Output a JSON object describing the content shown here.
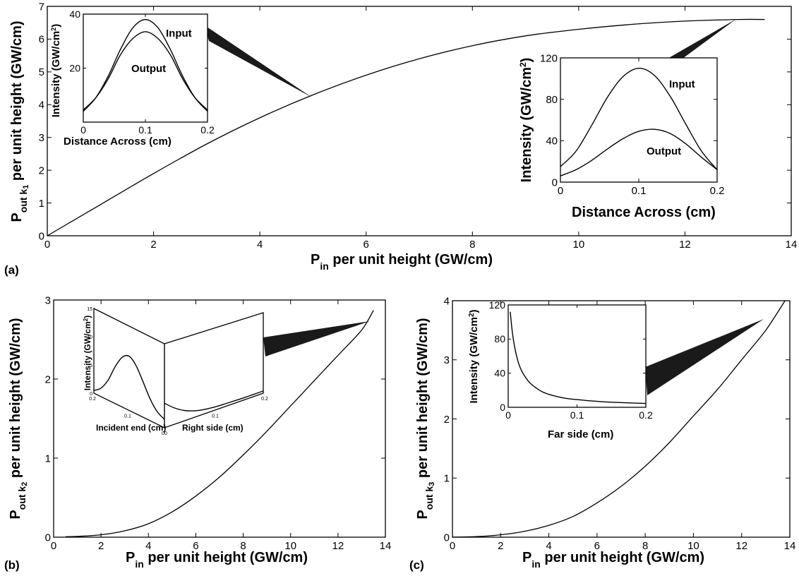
{
  "panels": {
    "a": {
      "tag": "(a)",
      "xlabel_main": "P",
      "xlabel_sub": "in",
      "xlabel_rest": " per unit height (GW/cm)",
      "ylabel_main": "P",
      "ylabel_sub1": "out k",
      "ylabel_sub2": "1",
      "ylabel_rest": " per unit height (GW/cm)",
      "inset_left": {
        "xlabel": "Distance Across (cm)",
        "ylabel_main": "Intensity (GW/cm",
        "ylabel_sup": "2",
        "ylabel_end": ")",
        "annotations": [
          "Input",
          "Output"
        ]
      },
      "inset_right": {
        "xlabel": "Distance Across (cm)",
        "ylabel_main": "Intensity (GW/cm",
        "ylabel_sup": "2",
        "ylabel_end": ")",
        "annotations": [
          "Input",
          "Output"
        ]
      }
    },
    "b": {
      "tag": "(b)",
      "xlabel_main": "P",
      "xlabel_sub": "in",
      "xlabel_rest": " per unit height (GW/cm)",
      "ylabel_main": "P",
      "ylabel_sub1": "out k",
      "ylabel_sub2": "2",
      "ylabel_rest": " per unit height (GW/cm)",
      "inset": {
        "zlabel_main": "Intensity (GW/cm",
        "zlabel_sup": "2",
        "zlabel_end": ")",
        "left_label": "Incident end (cm)",
        "right_label": "Right side (cm)",
        "z_ticks": [
          "0",
          "5",
          "10",
          "15"
        ],
        "left_ticks": [
          "0.2",
          "0.1",
          "0"
        ],
        "right_ticks": [
          "0",
          "0.1",
          "0.2"
        ]
      }
    },
    "c": {
      "tag": "(c)",
      "xlabel_main": "P",
      "xlabel_sub": "in",
      "xlabel_rest": " per unit height (GW/cm)",
      "ylabel_main": "P",
      "ylabel_sub1": "out k",
      "ylabel_sub2": "3",
      "ylabel_rest": " per unit height (GW/cm)",
      "inset": {
        "xlabel": "Far side (cm)",
        "ylabel_main": "Intensity (GW/cm",
        "ylabel_sup": "2",
        "ylabel_end": ")"
      }
    }
  },
  "chart_data": [
    {
      "id": "a-main",
      "type": "line",
      "xlim": [
        0,
        14
      ],
      "ylim": [
        0,
        7
      ],
      "xticks": [
        0,
        2,
        4,
        6,
        8,
        10,
        12,
        14
      ],
      "yticks": [
        0,
        1,
        2,
        3,
        4,
        5,
        6,
        7
      ],
      "grid": false,
      "series": [
        {
          "x": [
            0,
            1,
            2,
            3,
            4,
            5,
            6,
            7,
            8,
            9,
            10,
            11,
            12,
            13,
            13.5
          ],
          "y": [
            0,
            0.95,
            1.9,
            2.8,
            3.6,
            4.3,
            4.9,
            5.4,
            5.8,
            6.1,
            6.3,
            6.45,
            6.55,
            6.6,
            6.6
          ]
        }
      ]
    },
    {
      "id": "a-inset-left",
      "type": "line",
      "xlim": [
        0,
        0.2
      ],
      "ylim": [
        0,
        40
      ],
      "xticks": [
        0,
        0.1,
        0.2
      ],
      "yticks": [
        20,
        40
      ],
      "grid": false,
      "series": [
        {
          "name": "Input",
          "x": [
            0,
            0.02,
            0.04,
            0.06,
            0.08,
            0.1,
            0.12,
            0.14,
            0.16,
            0.18,
            0.2
          ],
          "y": [
            4,
            9,
            17,
            27,
            35,
            38,
            35,
            27,
            17,
            9,
            4
          ]
        },
        {
          "name": "Output",
          "x": [
            0,
            0.02,
            0.04,
            0.06,
            0.08,
            0.1,
            0.12,
            0.14,
            0.16,
            0.18,
            0.2
          ],
          "y": [
            4.5,
            9,
            16,
            25,
            31,
            33.5,
            31,
            25,
            16,
            9,
            4.5
          ]
        }
      ]
    },
    {
      "id": "a-inset-right",
      "type": "line",
      "xlim": [
        0,
        0.2
      ],
      "ylim": [
        0,
        120
      ],
      "xticks": [
        0,
        0.1,
        0.2
      ],
      "yticks": [
        0,
        40,
        80,
        120
      ],
      "grid": false,
      "series": [
        {
          "name": "Input",
          "x": [
            0,
            0.02,
            0.04,
            0.06,
            0.08,
            0.1,
            0.12,
            0.14,
            0.16,
            0.18,
            0.2
          ],
          "y": [
            15,
            30,
            55,
            82,
            102,
            110,
            103,
            83,
            56,
            30,
            12
          ]
        },
        {
          "name": "Output",
          "x": [
            0,
            0.02,
            0.04,
            0.06,
            0.08,
            0.1,
            0.12,
            0.14,
            0.16,
            0.18,
            0.2
          ],
          "y": [
            6,
            12,
            21,
            32,
            42,
            49,
            51,
            47,
            37,
            24,
            12
          ]
        }
      ]
    },
    {
      "id": "b-main",
      "type": "line",
      "xlim": [
        0,
        14
      ],
      "ylim": [
        0,
        3
      ],
      "xticks": [
        0,
        2,
        4,
        6,
        8,
        10,
        12,
        14
      ],
      "yticks": [
        0,
        1,
        2,
        3
      ],
      "grid": false,
      "series": [
        {
          "x": [
            0.5,
            1,
            2,
            3,
            4,
            5,
            6,
            7,
            8,
            9,
            10,
            11,
            12,
            13,
            13.5
          ],
          "y": [
            0.005,
            0.01,
            0.03,
            0.08,
            0.17,
            0.32,
            0.52,
            0.76,
            1.04,
            1.34,
            1.66,
            1.98,
            2.3,
            2.62,
            2.87
          ]
        }
      ]
    },
    {
      "id": "b-inset",
      "type": "line",
      "zlim": [
        0,
        15
      ],
      "series": [
        {
          "name": "Incident end",
          "x": [
            0.2,
            0.18,
            0.16,
            0.14,
            0.12,
            0.1,
            0.08,
            0.06,
            0.04,
            0.02,
            0
          ],
          "y": [
            0.5,
            1.5,
            3.5,
            6.5,
            8.8,
            9.6,
            8.5,
            6.2,
            3.8,
            2.2,
            1.5
          ]
        },
        {
          "name": "Right side",
          "x": [
            0,
            0.02,
            0.04,
            0.06,
            0.08,
            0.1,
            0.12,
            0.14,
            0.16,
            0.18,
            0.2
          ],
          "y": [
            4.5,
            3,
            1.9,
            1.2,
            0.8,
            0.6,
            0.5,
            0.45,
            0.4,
            0.4,
            0.4
          ]
        }
      ]
    },
    {
      "id": "c-main",
      "type": "line",
      "xlim": [
        0,
        14
      ],
      "ylim": [
        0,
        4
      ],
      "xticks": [
        0,
        2,
        4,
        6,
        8,
        10,
        12,
        14
      ],
      "yticks": [
        0,
        1,
        2,
        3,
        4
      ],
      "grid": false,
      "series": [
        {
          "x": [
            0,
            1,
            2,
            3,
            4,
            5,
            6,
            7,
            8,
            9,
            10,
            11,
            12,
            13,
            13.8
          ],
          "y": [
            0,
            0.01,
            0.04,
            0.1,
            0.2,
            0.35,
            0.58,
            0.86,
            1.2,
            1.6,
            2.05,
            2.5,
            3.0,
            3.5,
            4.0
          ]
        }
      ]
    },
    {
      "id": "c-inset",
      "type": "line",
      "xlim": [
        0,
        0.2
      ],
      "ylim": [
        0,
        120
      ],
      "xticks": [
        0,
        0.1,
        0.2
      ],
      "yticks": [
        0,
        40,
        80,
        120
      ],
      "grid": false,
      "series": [
        {
          "x": [
            0.003,
            0.006,
            0.01,
            0.015,
            0.02,
            0.03,
            0.04,
            0.05,
            0.06,
            0.08,
            0.1,
            0.12,
            0.15,
            0.2
          ],
          "y": [
            112,
            88,
            68,
            52,
            42,
            30,
            23,
            18,
            15,
            11,
            9,
            7.5,
            6,
            4.5
          ]
        }
      ]
    }
  ]
}
